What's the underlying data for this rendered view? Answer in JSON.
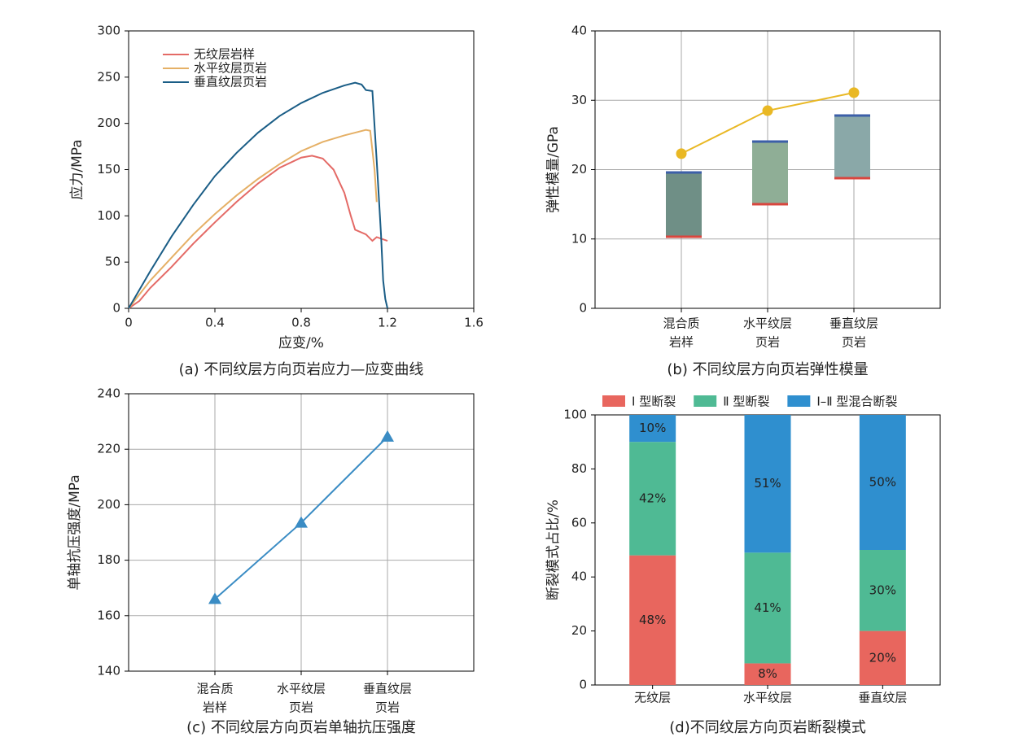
{
  "chart_data": [
    {
      "type": "line",
      "xlabel": "应变/%",
      "ylabel": "应力/MPa",
      "caption": "(a) 不同纹层方向页岩应力—应变曲线",
      "xlim": [
        0,
        1.6
      ],
      "xticks": [
        0,
        0.4,
        0.8,
        1.2,
        1.6
      ],
      "ylim": [
        0,
        300
      ],
      "yticks": [
        0,
        50,
        100,
        150,
        200,
        250,
        300
      ],
      "grid": false,
      "legend": "upper-left",
      "series": [
        {
          "name": "无纹层岩样",
          "color": "#e46a66",
          "x": [
            0,
            0.05,
            0.1,
            0.2,
            0.3,
            0.4,
            0.5,
            0.6,
            0.7,
            0.8,
            0.85,
            0.9,
            0.95,
            1.0,
            1.03,
            1.05,
            1.1,
            1.13,
            1.15,
            1.2
          ],
          "values": [
            0,
            8,
            22,
            45,
            70,
            93,
            115,
            135,
            152,
            163,
            165,
            162,
            150,
            125,
            100,
            85,
            80,
            73,
            77,
            73
          ]
        },
        {
          "name": "水平纹层页岩",
          "color": "#e5b066",
          "x": [
            0,
            0.1,
            0.2,
            0.3,
            0.4,
            0.5,
            0.6,
            0.7,
            0.8,
            0.9,
            1.0,
            1.05,
            1.1,
            1.12,
            1.14,
            1.15
          ],
          "values": [
            0,
            30,
            55,
            80,
            102,
            122,
            140,
            156,
            170,
            180,
            187,
            190,
            193,
            192,
            150,
            115
          ]
        },
        {
          "name": "垂直纹层页岩",
          "color": "#1a5d86",
          "x": [
            0,
            0.1,
            0.2,
            0.3,
            0.4,
            0.5,
            0.6,
            0.7,
            0.8,
            0.9,
            1.0,
            1.05,
            1.08,
            1.1,
            1.13,
            1.15,
            1.17,
            1.18,
            1.19,
            1.2
          ],
          "values": [
            0,
            40,
            78,
            112,
            143,
            168,
            190,
            208,
            222,
            233,
            241,
            244,
            242,
            236,
            235,
            160,
            80,
            30,
            10,
            0
          ]
        }
      ]
    },
    {
      "type": "line",
      "ylabel": "弹性模量/GPa",
      "caption": "(b) 不同纹层方向页岩弹性模量",
      "categories": [
        [
          "混合质",
          "岩样"
        ],
        [
          "水平纹层",
          "页岩"
        ],
        [
          "垂直纹层",
          "页岩"
        ]
      ],
      "values": [
        22.3,
        28.5,
        31.1
      ],
      "color": "#e9b824",
      "marker": "circle",
      "ylim": [
        0,
        40
      ],
      "yticks": [
        0,
        10,
        20,
        30,
        40
      ],
      "grid": true
    },
    {
      "type": "line",
      "ylabel": "单轴抗压强度/MPa",
      "caption": "(c) 不同纹层方向页岩单轴抗压强度",
      "categories": [
        [
          "混合质",
          "岩样"
        ],
        [
          "水平纹层",
          "页岩"
        ],
        [
          "垂直纹层",
          "页岩"
        ]
      ],
      "values": [
        166,
        193.5,
        224.5
      ],
      "color": "#3a8cc4",
      "marker": "triangle",
      "ylim": [
        140,
        240
      ],
      "yticks": [
        140,
        160,
        180,
        200,
        220,
        240
      ],
      "grid": true
    },
    {
      "type": "bar",
      "stacked": true,
      "ylabel": "断裂模式占比/%",
      "caption": "(d)不同纹层方向页岩断裂模式",
      "categories": [
        "无纹层",
        "水平纹层",
        "垂直纹层"
      ],
      "ylim": [
        0,
        100
      ],
      "yticks": [
        0,
        20,
        40,
        60,
        80,
        100
      ],
      "grid": false,
      "legend": "top",
      "series": [
        {
          "name": "Ⅰ 型断裂",
          "color": "#e8665e",
          "values": [
            48,
            8,
            20
          ],
          "value_labels": [
            "48%",
            "8%",
            "20%"
          ]
        },
        {
          "name": "Ⅱ 型断裂",
          "color": "#4fba94",
          "values": [
            42,
            41,
            30
          ],
          "value_labels": [
            "42%",
            "41%",
            "30%"
          ]
        },
        {
          "name": "Ⅰ–Ⅱ 型混合断裂",
          "color": "#2f8fcf",
          "values": [
            10,
            51,
            50
          ],
          "value_labels": [
            "10%",
            "51%",
            "50%"
          ]
        }
      ]
    }
  ]
}
